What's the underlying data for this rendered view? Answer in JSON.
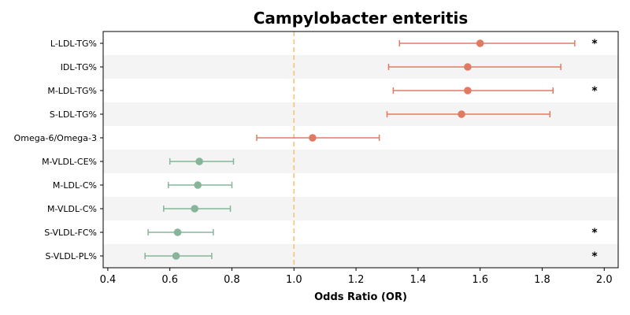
{
  "chart_data": {
    "type": "forest",
    "title": "Campylobacter enteritis",
    "xlabel": "Odds Ratio (OR)",
    "xlim": [
      0.385,
      2.045
    ],
    "xticks": [
      "0.4",
      "0.6",
      "0.8",
      "1.0",
      "1.2",
      "1.4",
      "1.6",
      "1.8",
      "2.0"
    ],
    "reference_line": 1.0,
    "grid": false,
    "colors": {
      "risk": "#e07b63",
      "protective": "#86b59a",
      "reference": "#f2c37a",
      "band": "#f4f4f4"
    },
    "rows": [
      {
        "label": "L-LDL-TG%",
        "or": 1.6,
        "lower": 1.34,
        "upper": 1.905,
        "group": "risk",
        "sig": "*"
      },
      {
        "label": "IDL-TG%",
        "or": 1.56,
        "lower": 1.305,
        "upper": 1.86,
        "group": "risk",
        "sig": ""
      },
      {
        "label": "M-LDL-TG%",
        "or": 1.56,
        "lower": 1.32,
        "upper": 1.835,
        "group": "risk",
        "sig": "*"
      },
      {
        "label": "S-LDL-TG%",
        "or": 1.54,
        "lower": 1.3,
        "upper": 1.825,
        "group": "risk",
        "sig": ""
      },
      {
        "label": "Omega-6/Omega-3",
        "or": 1.06,
        "lower": 0.88,
        "upper": 1.275,
        "group": "risk",
        "sig": ""
      },
      {
        "label": "M-VLDL-CE%",
        "or": 0.695,
        "lower": 0.6,
        "upper": 0.805,
        "group": "protective",
        "sig": ""
      },
      {
        "label": "M-LDL-C%",
        "or": 0.69,
        "lower": 0.595,
        "upper": 0.8,
        "group": "protective",
        "sig": ""
      },
      {
        "label": "M-VLDL-C%",
        "or": 0.68,
        "lower": 0.58,
        "upper": 0.795,
        "group": "protective",
        "sig": ""
      },
      {
        "label": "S-VLDL-FC%",
        "or": 0.625,
        "lower": 0.53,
        "upper": 0.74,
        "group": "protective",
        "sig": "*"
      },
      {
        "label": "S-VLDL-PL%",
        "or": 0.62,
        "lower": 0.52,
        "upper": 0.735,
        "group": "protective",
        "sig": "*"
      }
    ]
  }
}
